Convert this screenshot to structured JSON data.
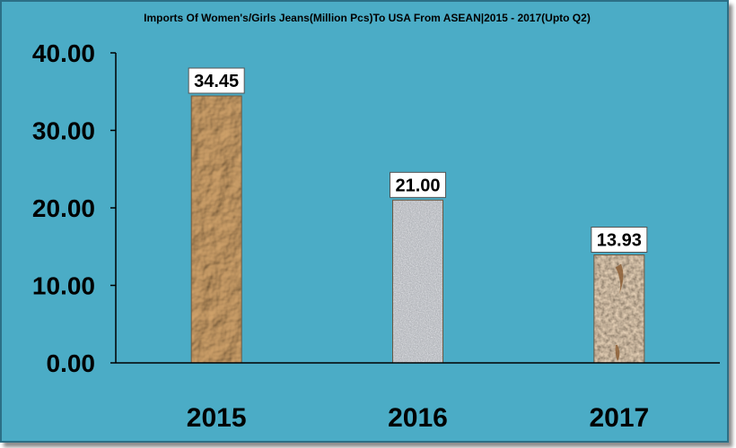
{
  "chart_data": {
    "type": "bar",
    "title": "Imports Of Women's/Girls Jeans(Million Pcs)To USA From ASEAN|2015 - 2017(Upto Q2)",
    "categories": [
      "2015",
      "2016",
      "2017"
    ],
    "values": [
      34.45,
      21.0,
      13.93
    ],
    "data_labels": [
      "34.45",
      "21.00",
      "13.93"
    ],
    "y_ticks": [
      "0.00",
      "10.00",
      "20.00",
      "30.00",
      "40.00"
    ],
    "ylim": [
      0,
      40
    ],
    "xlabel": "",
    "ylabel": "",
    "grid": false,
    "legend": "none",
    "colors": {
      "background": "#4bacc6",
      "bar_textures": [
        "#b58a55",
        "#a9acb1",
        "#dcb992"
      ]
    }
  }
}
